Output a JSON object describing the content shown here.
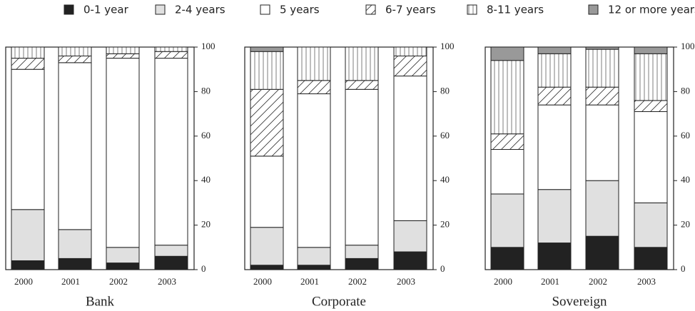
{
  "legend": [
    {
      "name": "0-1 year",
      "color": "#222222",
      "pattern": "solid"
    },
    {
      "name": "2-4 years",
      "color": "#e0e0e0",
      "pattern": "solid"
    },
    {
      "name": "5 years",
      "color": "#ffffff",
      "pattern": "solid"
    },
    {
      "name": "6-7 years",
      "color": "#ffffff",
      "pattern": "diagonal"
    },
    {
      "name": "8-11 years",
      "color": "#ffffff",
      "pattern": "vertical"
    },
    {
      "name": "12 or more years",
      "color": "#999999",
      "pattern": "solid"
    }
  ],
  "chart_data": [
    {
      "type": "bar",
      "stacked": true,
      "title": "Bank",
      "categories": [
        "2000",
        "2001",
        "2002",
        "2003"
      ],
      "ylim": [
        0,
        100
      ],
      "yticks": [
        0,
        20,
        40,
        60,
        80,
        100
      ],
      "series": [
        {
          "values": [
            4,
            5,
            3,
            6
          ]
        },
        {
          "values": [
            23,
            13,
            7,
            5
          ]
        },
        {
          "values": [
            63,
            75,
            85,
            84
          ]
        },
        {
          "values": [
            5,
            3,
            2,
            3
          ]
        },
        {
          "values": [
            5,
            4,
            3,
            2
          ]
        },
        {
          "values": [
            0,
            0,
            0,
            0
          ]
        }
      ]
    },
    {
      "type": "bar",
      "stacked": true,
      "title": "Corporate",
      "categories": [
        "2000",
        "2001",
        "2002",
        "2003"
      ],
      "ylim": [
        0,
        100
      ],
      "yticks": [
        0,
        20,
        40,
        60,
        80,
        100
      ],
      "series": [
        {
          "values": [
            2,
            2,
            5,
            8
          ]
        },
        {
          "values": [
            17,
            8,
            6,
            14
          ]
        },
        {
          "values": [
            32,
            69,
            70,
            65
          ]
        },
        {
          "values": [
            30,
            6,
            4,
            9
          ]
        },
        {
          "values": [
            17,
            15,
            15,
            4
          ]
        },
        {
          "values": [
            2,
            0,
            0,
            0
          ]
        }
      ]
    },
    {
      "type": "bar",
      "stacked": true,
      "title": "Sovereign",
      "categories": [
        "2000",
        "2001",
        "2002",
        "2003"
      ],
      "ylim": [
        0,
        100
      ],
      "yticks": [
        0,
        20,
        40,
        60,
        80,
        100
      ],
      "series": [
        {
          "values": [
            10,
            12,
            15,
            10
          ]
        },
        {
          "values": [
            24,
            24,
            25,
            20
          ]
        },
        {
          "values": [
            20,
            38,
            34,
            41
          ]
        },
        {
          "values": [
            7,
            8,
            8,
            5
          ]
        },
        {
          "values": [
            33,
            15,
            17,
            21
          ]
        },
        {
          "values": [
            6,
            3,
            1,
            3
          ]
        }
      ]
    }
  ]
}
